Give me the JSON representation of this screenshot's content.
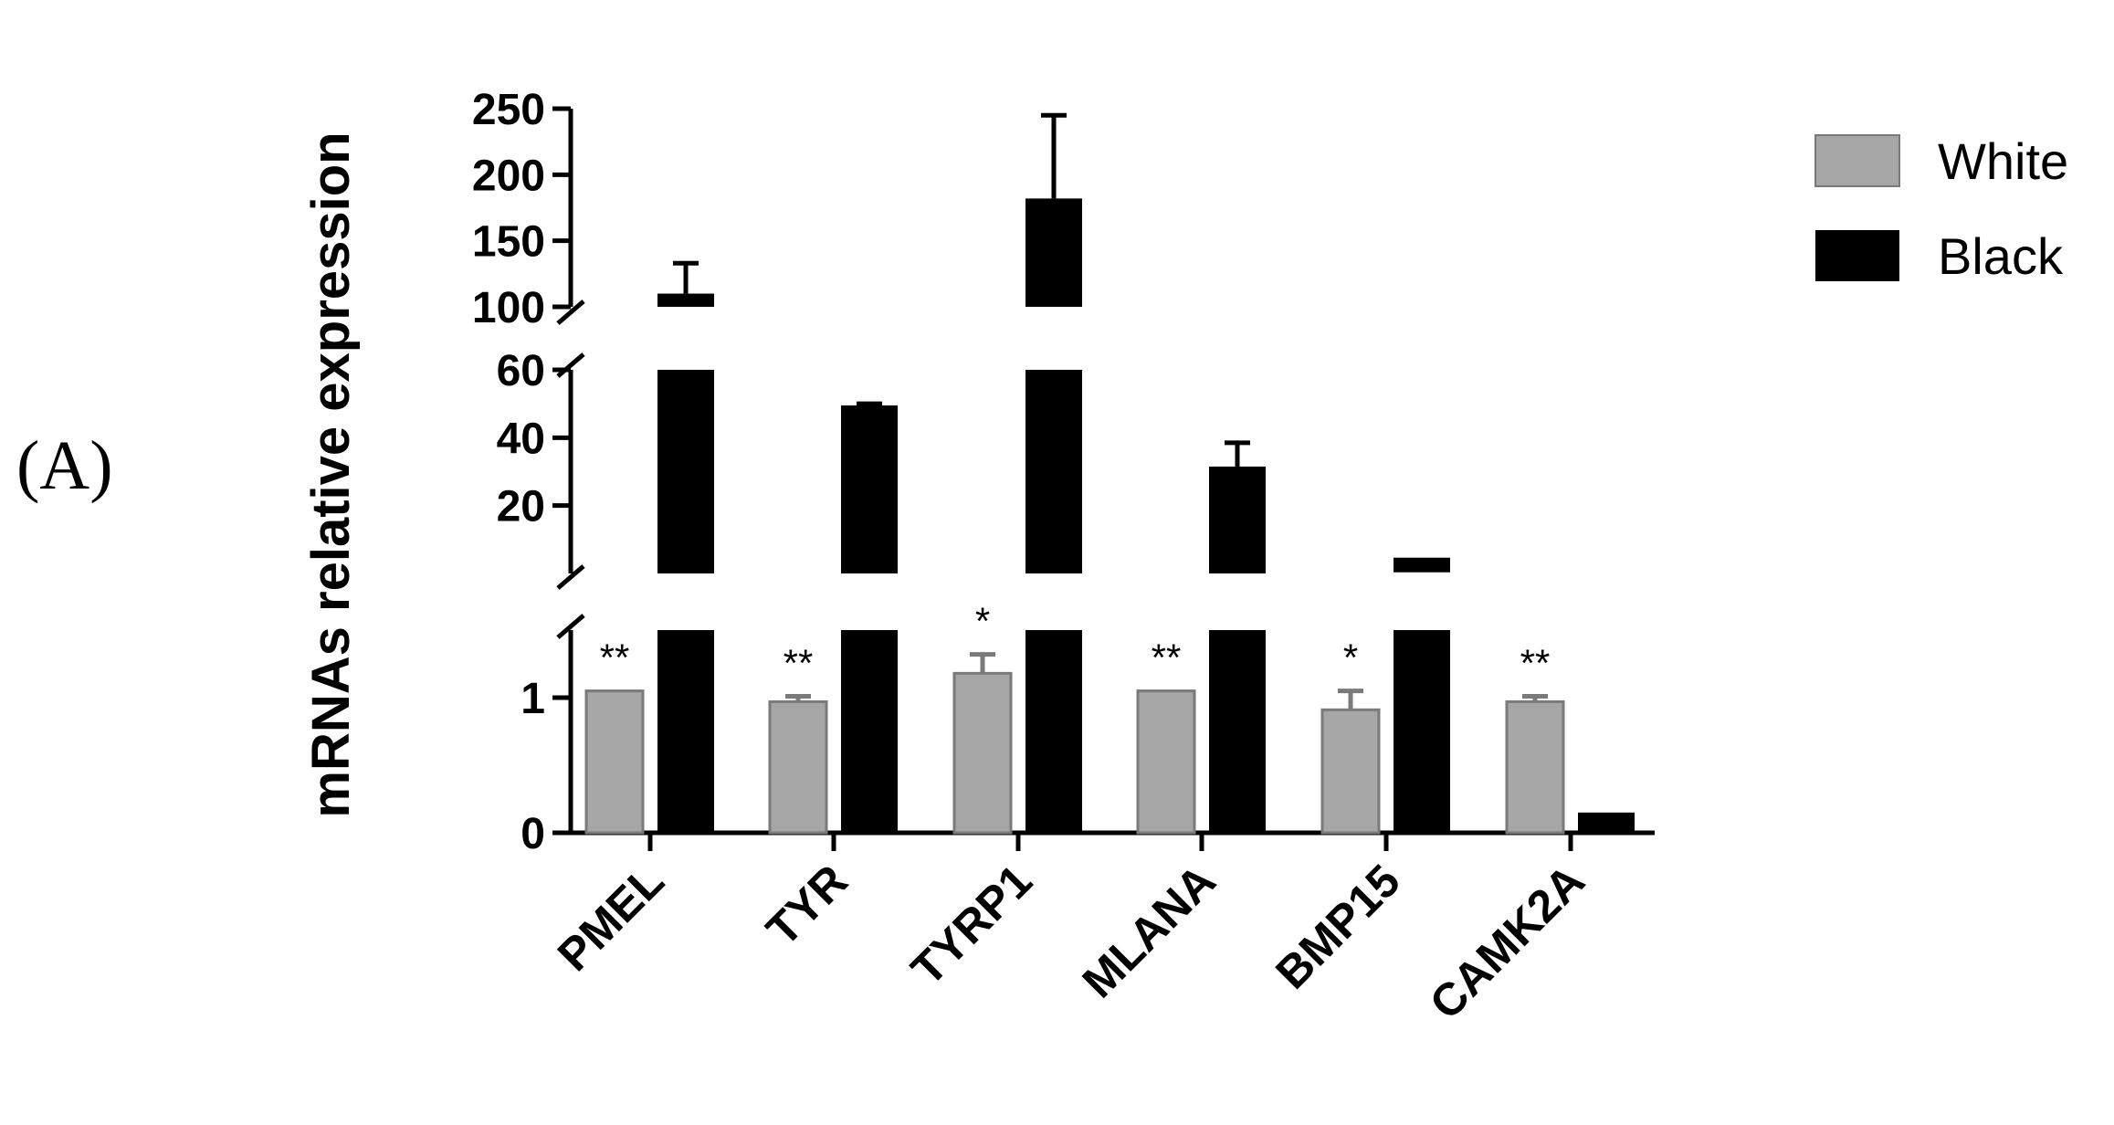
{
  "panel_label": "(A)",
  "chart_data": {
    "type": "bar",
    "title": "",
    "xlabel": "",
    "ylabel": "mRNAs relative expression",
    "categories": [
      "PMEL",
      "TYR",
      "TYRP1",
      "MLANA",
      "BMP15",
      "CAMK2A"
    ],
    "y_axis_segments": [
      {
        "range": [
          0,
          1.5
        ],
        "ticks": [
          0,
          1
        ]
      },
      {
        "range": [
          0,
          60
        ],
        "ticks": [
          20,
          40,
          60
        ]
      },
      {
        "range": [
          100,
          250
        ],
        "ticks": [
          100,
          150,
          200,
          250
        ]
      }
    ],
    "tick_labels": [
      "0",
      "1",
      "20",
      "40",
      "60",
      "100",
      "150",
      "200",
      "250"
    ],
    "legend_position": "top-right",
    "series": [
      {
        "name": "White",
        "color": "#a6a6a6",
        "values": [
          1.05,
          0.97,
          1.18,
          1.05,
          0.91,
          0.97
        ],
        "errors": [
          0.0,
          0.04,
          0.14,
          0.0,
          0.14,
          0.04
        ]
      },
      {
        "name": "Black",
        "color": "#000000",
        "values": [
          110,
          49.5,
          182,
          31.5,
          2.5,
          0.15
        ],
        "errors": [
          23,
          0.5,
          63,
          7,
          0,
          0.02
        ]
      }
    ],
    "significance": [
      "**",
      "**",
      "*",
      "**",
      "*",
      "**"
    ]
  }
}
